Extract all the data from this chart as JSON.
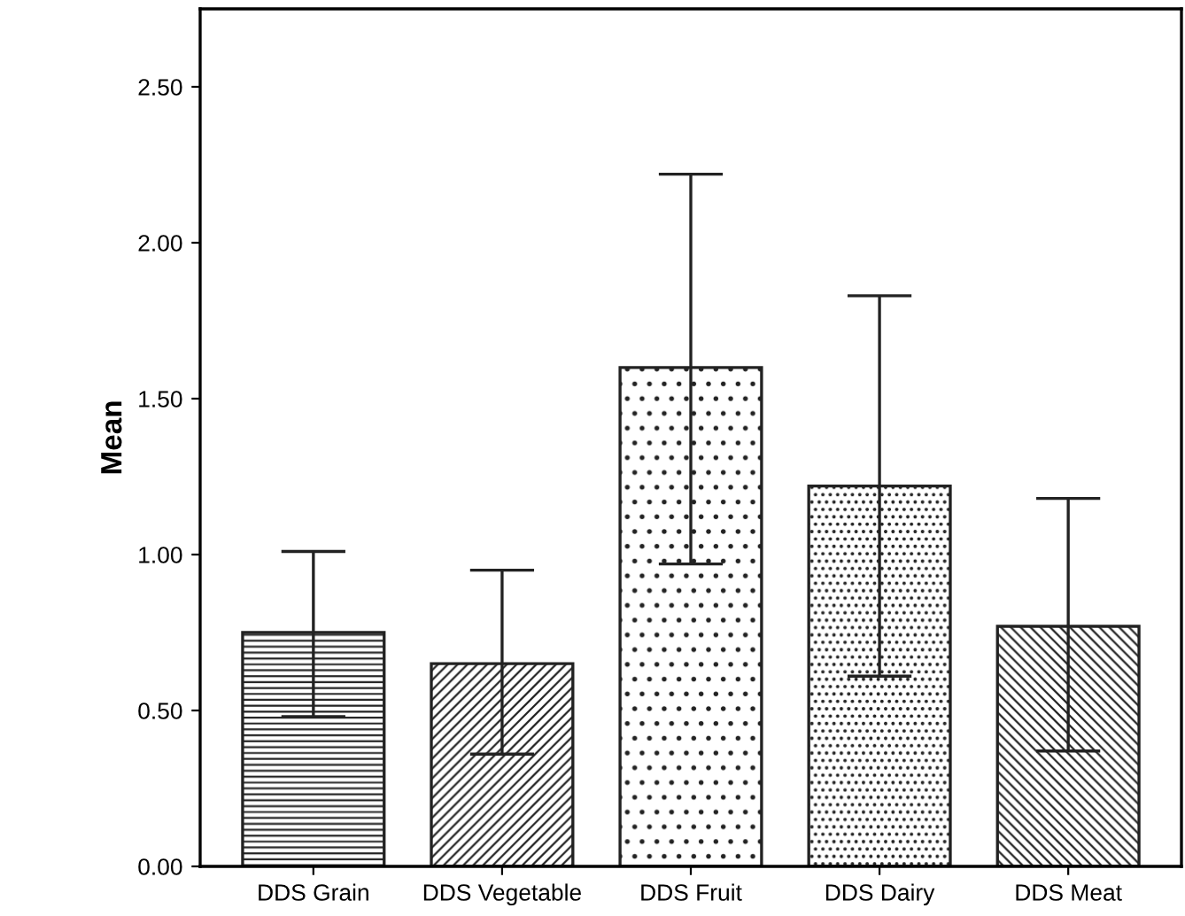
{
  "chart_data": {
    "type": "bar",
    "ylabel": "Mean",
    "categories": [
      "DDS Grain",
      "DDS Vegetable",
      "DDS Fruit",
      "DDS Dairy",
      "DDS Meat"
    ],
    "values": [
      0.75,
      0.65,
      1.6,
      1.22,
      0.77
    ],
    "errors": [
      [
        0.48,
        1.01
      ],
      [
        0.36,
        0.95
      ],
      [
        0.97,
        2.22
      ],
      [
        0.61,
        1.83
      ],
      [
        0.37,
        1.18
      ]
    ],
    "ylim": [
      0,
      2.75
    ],
    "yticks": [
      {
        "value": 0,
        "label": "0.00"
      },
      {
        "value": 0.5,
        "label": "0.50"
      },
      {
        "value": 1.0,
        "label": "1.00"
      },
      {
        "value": 1.5,
        "label": "1.50"
      },
      {
        "value": 2.0,
        "label": "2.00"
      },
      {
        "value": 2.5,
        "label": "2.50"
      }
    ],
    "grid": false,
    "legend": false
  }
}
